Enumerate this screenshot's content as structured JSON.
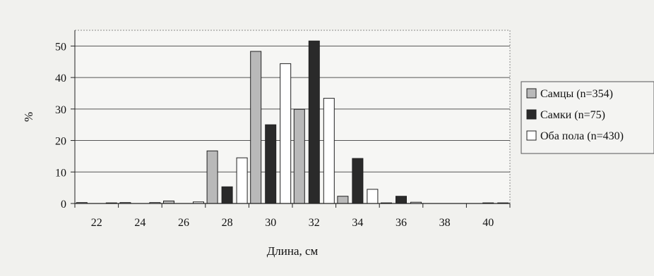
{
  "chart_data": {
    "type": "bar",
    "xlabel": "Длина, см",
    "ylabel": "%",
    "categories": [
      "22",
      "24",
      "26",
      "28",
      "30",
      "32",
      "34",
      "36",
      "38",
      "40"
    ],
    "ylim": [
      0,
      55
    ],
    "yticks": [
      "0",
      "10",
      "20",
      "30",
      "40",
      "50"
    ],
    "grid": true,
    "legend_position": "right",
    "series": [
      {
        "name": "Самцы (n=354)",
        "color": "#b9b9b9",
        "values": [
          0.3,
          0.3,
          0.8,
          16.7,
          48.3,
          29.9,
          2.3,
          0.2,
          0.0,
          0.0
        ]
      },
      {
        "name": "Самки (n=75)",
        "color": "#2a2a2a",
        "values": [
          0.0,
          0.0,
          0.0,
          5.3,
          25.0,
          51.6,
          14.3,
          2.3,
          0.0,
          0.2
        ]
      },
      {
        "name": "Оба пола (n=430)",
        "color": "#ffffff",
        "values": [
          0.2,
          0.3,
          0.5,
          14.5,
          44.4,
          33.4,
          4.5,
          0.4,
          0.0,
          0.2
        ]
      }
    ]
  }
}
